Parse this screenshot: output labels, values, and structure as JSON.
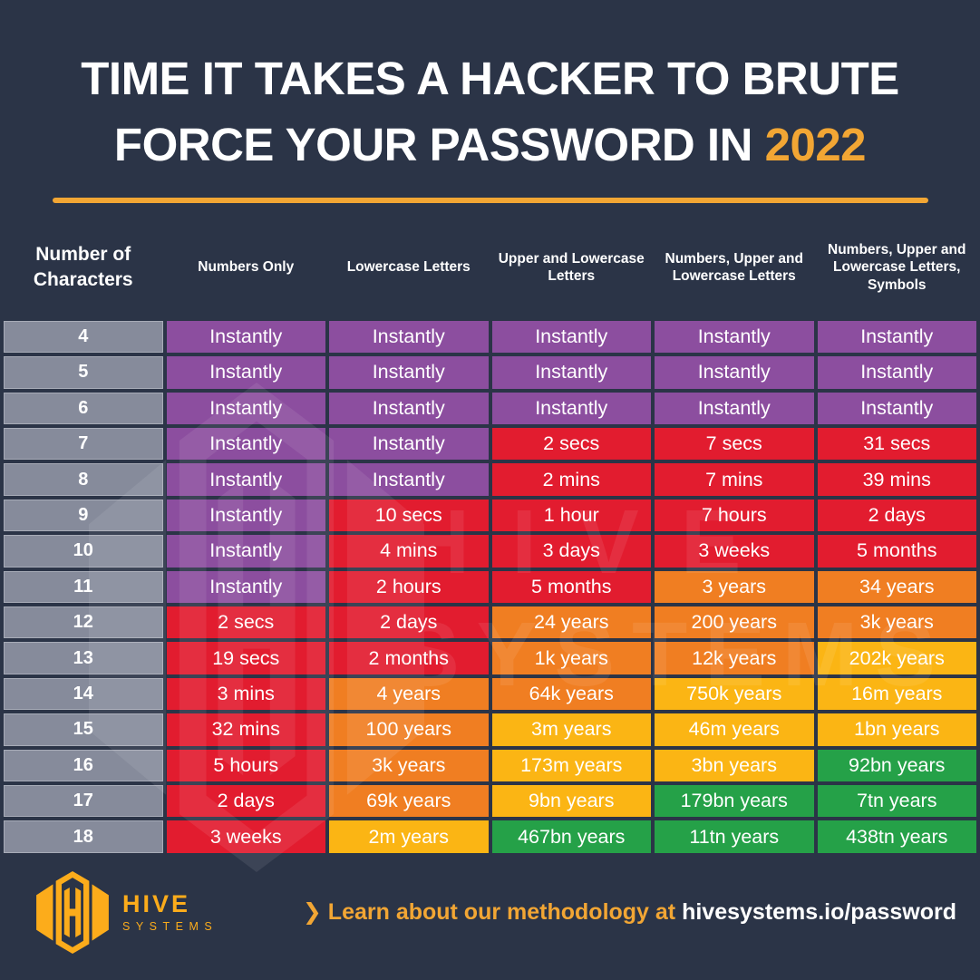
{
  "page": {
    "background": "#2B3447",
    "accent": "#F2A634",
    "logo_gold": "#FCAC1B"
  },
  "title": {
    "text": "TIME IT TAKES A HACKER TO BRUTE FORCE YOUR PASSWORD IN",
    "year": "2022"
  },
  "palette": {
    "gray": "#868B9B",
    "purple": "#8C4E9F",
    "red": "#E21C2F",
    "orange": "#F07E22",
    "amber": "#FBB514",
    "green": "#25A148"
  },
  "table": {
    "col_headers": [
      "Number of Characters",
      "Numbers Only",
      "Lowercase Letters",
      "Upper and Lowercase Letters",
      "Numbers, Upper and Lowercase Letters",
      "Numbers, Upper and Lowercase Letters, Symbols"
    ],
    "rows": [
      {
        "n": "4",
        "cells": [
          [
            "Instantly",
            "purple"
          ],
          [
            "Instantly",
            "purple"
          ],
          [
            "Instantly",
            "purple"
          ],
          [
            "Instantly",
            "purple"
          ],
          [
            "Instantly",
            "purple"
          ]
        ]
      },
      {
        "n": "5",
        "cells": [
          [
            "Instantly",
            "purple"
          ],
          [
            "Instantly",
            "purple"
          ],
          [
            "Instantly",
            "purple"
          ],
          [
            "Instantly",
            "purple"
          ],
          [
            "Instantly",
            "purple"
          ]
        ]
      },
      {
        "n": "6",
        "cells": [
          [
            "Instantly",
            "purple"
          ],
          [
            "Instantly",
            "purple"
          ],
          [
            "Instantly",
            "purple"
          ],
          [
            "Instantly",
            "purple"
          ],
          [
            "Instantly",
            "purple"
          ]
        ]
      },
      {
        "n": "7",
        "cells": [
          [
            "Instantly",
            "purple"
          ],
          [
            "Instantly",
            "purple"
          ],
          [
            "2 secs",
            "red"
          ],
          [
            "7 secs",
            "red"
          ],
          [
            "31 secs",
            "red"
          ]
        ]
      },
      {
        "n": "8",
        "cells": [
          [
            "Instantly",
            "purple"
          ],
          [
            "Instantly",
            "purple"
          ],
          [
            "2 mins",
            "red"
          ],
          [
            "7 mins",
            "red"
          ],
          [
            "39 mins",
            "red"
          ]
        ]
      },
      {
        "n": "9",
        "cells": [
          [
            "Instantly",
            "purple"
          ],
          [
            "10 secs",
            "red"
          ],
          [
            "1 hour",
            "red"
          ],
          [
            "7 hours",
            "red"
          ],
          [
            "2 days",
            "red"
          ]
        ]
      },
      {
        "n": "10",
        "cells": [
          [
            "Instantly",
            "purple"
          ],
          [
            "4 mins",
            "red"
          ],
          [
            "3 days",
            "red"
          ],
          [
            "3 weeks",
            "red"
          ],
          [
            "5 months",
            "red"
          ]
        ]
      },
      {
        "n": "11",
        "cells": [
          [
            "Instantly",
            "purple"
          ],
          [
            "2 hours",
            "red"
          ],
          [
            "5 months",
            "red"
          ],
          [
            "3 years",
            "orange"
          ],
          [
            "34 years",
            "orange"
          ]
        ]
      },
      {
        "n": "12",
        "cells": [
          [
            "2 secs",
            "red"
          ],
          [
            "2 days",
            "red"
          ],
          [
            "24 years",
            "orange"
          ],
          [
            "200 years",
            "orange"
          ],
          [
            "3k years",
            "orange"
          ]
        ]
      },
      {
        "n": "13",
        "cells": [
          [
            "19 secs",
            "red"
          ],
          [
            "2 months",
            "red"
          ],
          [
            "1k years",
            "orange"
          ],
          [
            "12k years",
            "orange"
          ],
          [
            "202k years",
            "amber"
          ]
        ]
      },
      {
        "n": "14",
        "cells": [
          [
            "3 mins",
            "red"
          ],
          [
            "4 years",
            "orange"
          ],
          [
            "64k years",
            "orange"
          ],
          [
            "750k years",
            "amber"
          ],
          [
            "16m years",
            "amber"
          ]
        ]
      },
      {
        "n": "15",
        "cells": [
          [
            "32 mins",
            "red"
          ],
          [
            "100 years",
            "orange"
          ],
          [
            "3m years",
            "amber"
          ],
          [
            "46m years",
            "amber"
          ],
          [
            "1bn years",
            "amber"
          ]
        ]
      },
      {
        "n": "16",
        "cells": [
          [
            "5 hours",
            "red"
          ],
          [
            "3k years",
            "orange"
          ],
          [
            "173m years",
            "amber"
          ],
          [
            "3bn years",
            "amber"
          ],
          [
            "92bn years",
            "green"
          ]
        ]
      },
      {
        "n": "17",
        "cells": [
          [
            "2 days",
            "red"
          ],
          [
            "69k years",
            "orange"
          ],
          [
            "9bn years",
            "amber"
          ],
          [
            "179bn years",
            "green"
          ],
          [
            "7tn years",
            "green"
          ]
        ]
      },
      {
        "n": "18",
        "cells": [
          [
            "3 weeks",
            "red"
          ],
          [
            "2m years",
            "amber"
          ],
          [
            "467bn years",
            "green"
          ],
          [
            "11tn years",
            "green"
          ],
          [
            "438tn years",
            "green"
          ]
        ]
      }
    ]
  },
  "watermark": {
    "word1": "HIVE",
    "word2": "SYSTEMS"
  },
  "footer": {
    "brand": "HIVE",
    "brand_sub": "SYSTEMS",
    "chevron": "❯",
    "tagline": "Learn about our methodology at",
    "link": "hivesystems.io/password"
  },
  "chart_data": {
    "type": "table",
    "title": "TIME IT TAKES A HACKER TO BRUTE FORCE YOUR PASSWORD IN 2022",
    "row_header": "Number of Characters",
    "categories": [
      4,
      5,
      6,
      7,
      8,
      9,
      10,
      11,
      12,
      13,
      14,
      15,
      16,
      17,
      18
    ],
    "series": [
      {
        "name": "Numbers Only",
        "values": [
          "Instantly",
          "Instantly",
          "Instantly",
          "Instantly",
          "Instantly",
          "Instantly",
          "Instantly",
          "Instantly",
          "2 secs",
          "19 secs",
          "3 mins",
          "32 mins",
          "5 hours",
          "2 days",
          "3 weeks"
        ]
      },
      {
        "name": "Lowercase Letters",
        "values": [
          "Instantly",
          "Instantly",
          "Instantly",
          "Instantly",
          "Instantly",
          "10 secs",
          "4 mins",
          "2 hours",
          "2 days",
          "2 months",
          "4 years",
          "100 years",
          "3k years",
          "69k years",
          "2m years"
        ]
      },
      {
        "name": "Upper and Lowercase Letters",
        "values": [
          "Instantly",
          "Instantly",
          "Instantly",
          "2 secs",
          "2 mins",
          "1 hour",
          "3 days",
          "5 months",
          "24 years",
          "1k years",
          "64k years",
          "3m years",
          "173m years",
          "9bn years",
          "467bn years"
        ]
      },
      {
        "name": "Numbers, Upper and Lowercase Letters",
        "values": [
          "Instantly",
          "Instantly",
          "Instantly",
          "7 secs",
          "7 mins",
          "7 hours",
          "3 weeks",
          "3 years",
          "200 years",
          "12k years",
          "750k years",
          "46m years",
          "3bn years",
          "179bn years",
          "11tn years"
        ]
      },
      {
        "name": "Numbers, Upper and Lowercase Letters, Symbols",
        "values": [
          "Instantly",
          "Instantly",
          "Instantly",
          "31 secs",
          "39 mins",
          "2 days",
          "5 months",
          "34 years",
          "3k years",
          "202k years",
          "16m years",
          "1bn years",
          "92bn years",
          "7tn years",
          "438tn years"
        ]
      }
    ]
  }
}
